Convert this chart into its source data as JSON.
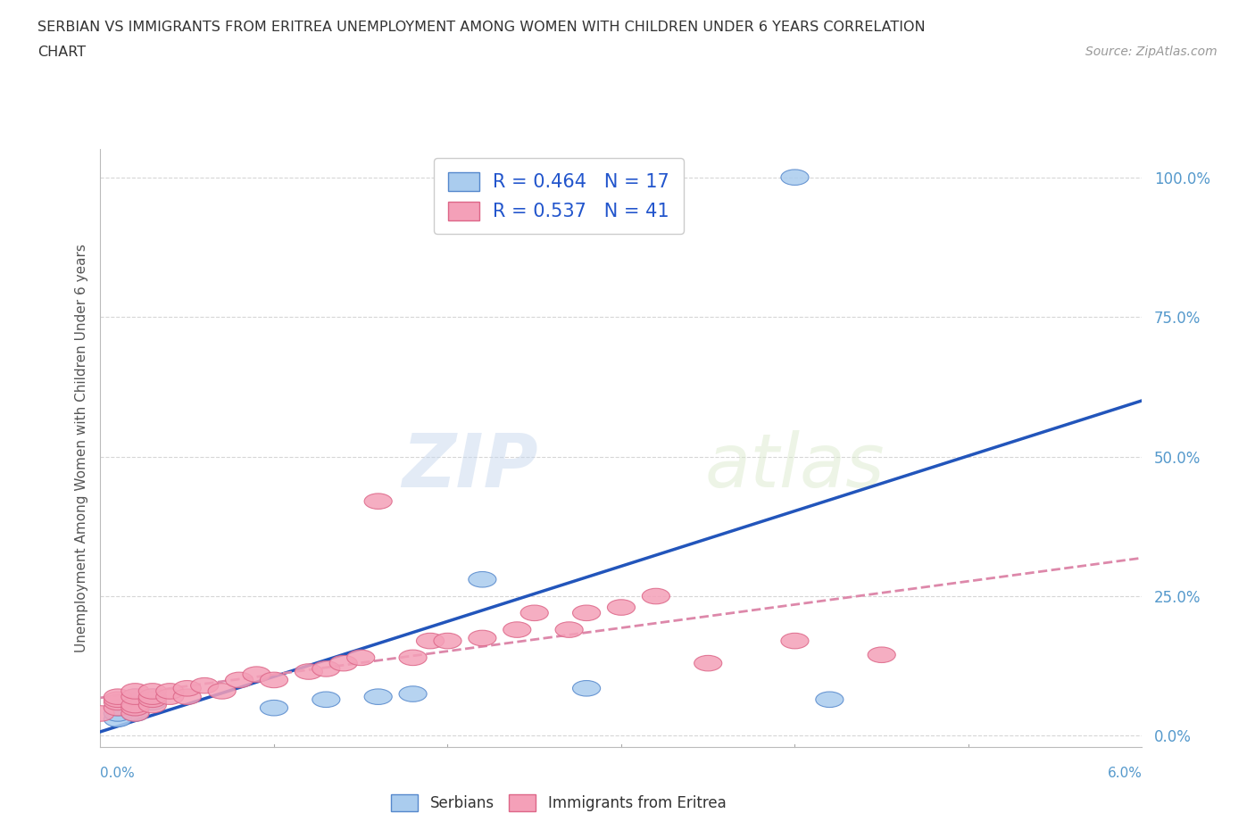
{
  "title_line1": "SERBIAN VS IMMIGRANTS FROM ERITREA UNEMPLOYMENT AMONG WOMEN WITH CHILDREN UNDER 6 YEARS CORRELATION",
  "title_line2": "CHART",
  "source": "Source: ZipAtlas.com",
  "ylabel": "Unemployment Among Women with Children Under 6 years",
  "yticks": [
    0.0,
    0.25,
    0.5,
    0.75,
    1.0
  ],
  "ytick_labels": [
    "0.0%",
    "25.0%",
    "50.0%",
    "75.0%",
    "100.0%"
  ],
  "xlim": [
    0.0,
    0.06
  ],
  "ylim": [
    -0.02,
    1.05
  ],
  "watermark_zip": "ZIP",
  "watermark_atlas": "atlas",
  "legend_serbian_R": "0.464",
  "legend_serbian_N": "17",
  "legend_eritrea_R": "0.537",
  "legend_eritrea_N": "41",
  "serbian_color": "#aaccee",
  "serbian_edge_color": "#5588cc",
  "eritrea_color": "#f4a0b8",
  "eritrea_edge_color": "#dd6688",
  "serbian_line_color": "#2255bb",
  "eritrea_line_color": "#dd88aa",
  "serbian_x": [
    0.001,
    0.001,
    0.001,
    0.002,
    0.002,
    0.002,
    0.002,
    0.003,
    0.003,
    0.01,
    0.013,
    0.016,
    0.018,
    0.022,
    0.028,
    0.04,
    0.042
  ],
  "serbian_y": [
    0.03,
    0.04,
    0.05,
    0.04,
    0.05,
    0.06,
    0.07,
    0.06,
    0.07,
    0.05,
    0.065,
    0.07,
    0.075,
    0.28,
    0.085,
    1.0,
    0.065
  ],
  "eritrea_x": [
    0.0,
    0.001,
    0.001,
    0.001,
    0.001,
    0.002,
    0.002,
    0.002,
    0.002,
    0.002,
    0.003,
    0.003,
    0.003,
    0.003,
    0.004,
    0.004,
    0.005,
    0.005,
    0.006,
    0.007,
    0.008,
    0.009,
    0.01,
    0.012,
    0.013,
    0.014,
    0.015,
    0.016,
    0.018,
    0.019,
    0.02,
    0.022,
    0.024,
    0.025,
    0.027,
    0.028,
    0.03,
    0.032,
    0.035,
    0.04,
    0.045
  ],
  "eritrea_y": [
    0.04,
    0.05,
    0.06,
    0.065,
    0.07,
    0.04,
    0.05,
    0.055,
    0.07,
    0.08,
    0.055,
    0.065,
    0.07,
    0.08,
    0.07,
    0.08,
    0.07,
    0.085,
    0.09,
    0.08,
    0.1,
    0.11,
    0.1,
    0.115,
    0.12,
    0.13,
    0.14,
    0.42,
    0.14,
    0.17,
    0.17,
    0.175,
    0.19,
    0.22,
    0.19,
    0.22,
    0.23,
    0.25,
    0.13,
    0.17,
    0.145
  ]
}
